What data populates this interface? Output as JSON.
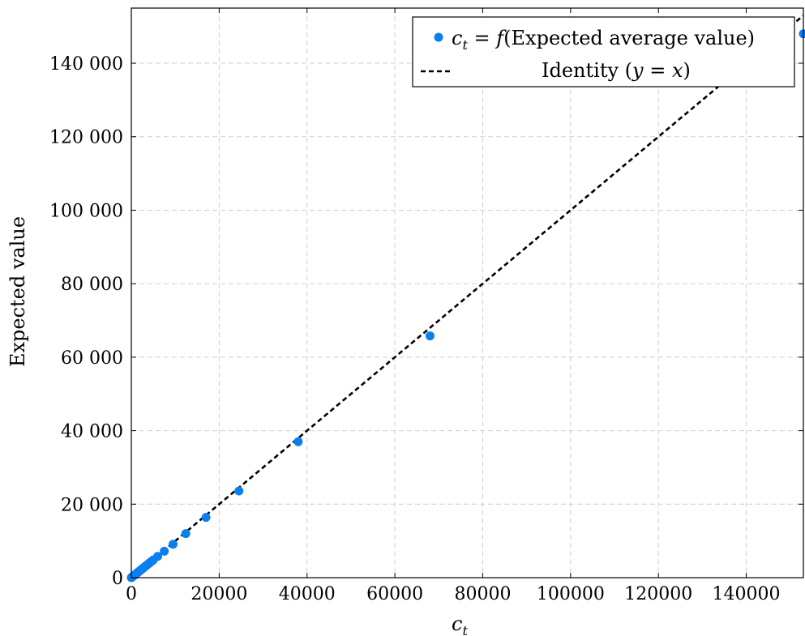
{
  "chart_data": {
    "type": "scatter",
    "xlabel": "c",
    "xlabel_sub": "t",
    "ylabel": "Expected value",
    "xlim": [
      0,
      153000
    ],
    "ylim": [
      0,
      155000
    ],
    "grid": true,
    "legend_position": "top-right",
    "x_ticks": [
      0,
      20000,
      40000,
      60000,
      80000,
      100000,
      120000,
      140000
    ],
    "x_tick_labels": [
      "0",
      "20000",
      "40000",
      "60000",
      "80000",
      "100000",
      "120000",
      "140000"
    ],
    "y_ticks": [
      0,
      20000,
      40000,
      60000,
      80000,
      100000,
      120000,
      140000
    ],
    "y_tick_labels": [
      "0",
      "20 000",
      "40 000",
      "60 000",
      "80 000",
      "100 000",
      "120 000",
      "140 000"
    ],
    "series": [
      {
        "name": "c_t = f(Expected average value)",
        "legend_parts": {
          "c": "c",
          "sub": "t",
          "eq": " = ",
          "f": "f",
          "rest": "(Expected average value)"
        },
        "kind": "scatter",
        "color": "#0a80f0",
        "points": [
          [
            0,
            0
          ],
          [
            100,
            100
          ],
          [
            200,
            190
          ],
          [
            300,
            290
          ],
          [
            450,
            440
          ],
          [
            600,
            580
          ],
          [
            800,
            770
          ],
          [
            1000,
            970
          ],
          [
            1200,
            1160
          ],
          [
            1400,
            1350
          ],
          [
            1600,
            1550
          ],
          [
            1800,
            1740
          ],
          [
            2000,
            1930
          ],
          [
            2250,
            2170
          ],
          [
            2500,
            2420
          ],
          [
            2750,
            2650
          ],
          [
            3000,
            2900
          ],
          [
            3300,
            3190
          ],
          [
            3600,
            3480
          ],
          [
            3900,
            3770
          ],
          [
            4250,
            4100
          ],
          [
            4600,
            4440
          ],
          [
            5000,
            4830
          ],
          [
            6000,
            5800
          ],
          [
            7500,
            7200
          ],
          [
            9500,
            9100
          ],
          [
            12400,
            12000
          ],
          [
            17000,
            16400
          ],
          [
            24500,
            23600
          ],
          [
            38000,
            37000
          ],
          [
            68000,
            65800
          ],
          [
            153000,
            148000
          ]
        ]
      },
      {
        "name": "Identity (y = x)",
        "legend_parts": {
          "pre": "Identity (",
          "y": "y",
          "eq": " = ",
          "x": "x",
          "post": ")"
        },
        "kind": "line",
        "style": "dashed",
        "color": "#000000",
        "points": [
          [
            0,
            0
          ],
          [
            153000,
            153000
          ]
        ]
      }
    ]
  }
}
